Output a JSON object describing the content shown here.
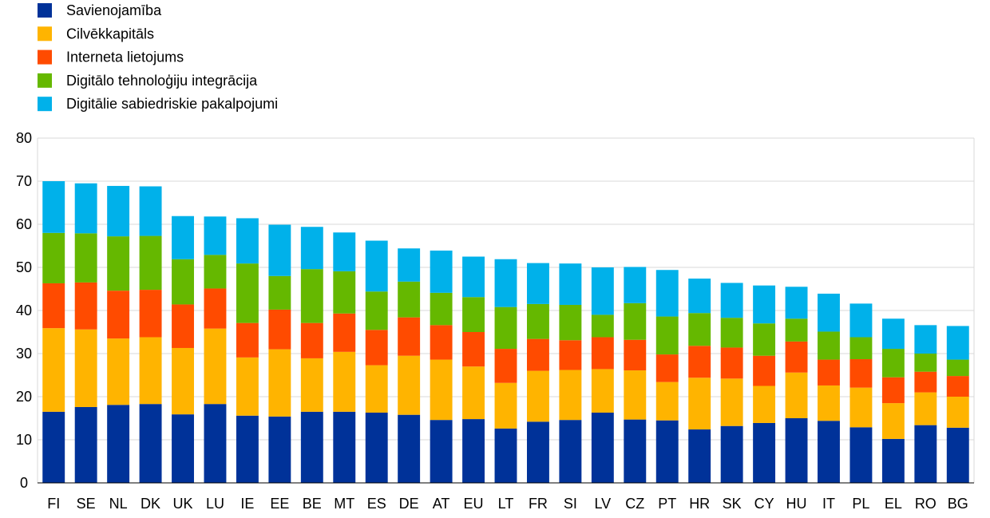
{
  "chart_data": {
    "type": "bar",
    "stacked": true,
    "categories": [
      "FI",
      "SE",
      "NL",
      "DK",
      "UK",
      "LU",
      "IE",
      "EE",
      "BE",
      "MT",
      "ES",
      "DE",
      "AT",
      "EU",
      "LT",
      "FR",
      "SI",
      "LV",
      "CZ",
      "PT",
      "HR",
      "SK",
      "CY",
      "HU",
      "IT",
      "PL",
      "EL",
      "RO",
      "BG"
    ],
    "series": [
      {
        "name": "Savienojamība",
        "color": "#003299",
        "values": [
          16.5,
          17.6,
          18.1,
          18.3,
          15.9,
          18.3,
          15.6,
          15.4,
          16.5,
          16.5,
          16.3,
          15.8,
          14.6,
          14.8,
          12.6,
          14.2,
          14.6,
          16.3,
          14.7,
          14.5,
          12.4,
          13.2,
          13.9,
          15.0,
          14.4,
          12.9,
          10.2,
          13.4,
          12.8
        ]
      },
      {
        "name": "Cilvēkkapitāls",
        "color": "#FFB400",
        "values": [
          19.4,
          18.0,
          15.4,
          15.5,
          15.4,
          17.5,
          13.5,
          15.6,
          12.4,
          13.9,
          11.0,
          13.7,
          14.0,
          12.2,
          10.6,
          11.8,
          11.6,
          10.1,
          11.4,
          8.9,
          12.0,
          11.0,
          8.6,
          10.6,
          8.2,
          9.2,
          8.3,
          7.6,
          7.2
        ]
      },
      {
        "name": "Interneta lietojums",
        "color": "#FF4B00",
        "values": [
          10.4,
          10.9,
          11.1,
          11.0,
          10.1,
          9.3,
          8.0,
          9.2,
          8.2,
          8.9,
          8.2,
          8.9,
          8.0,
          8.0,
          7.9,
          7.4,
          6.9,
          7.4,
          7.1,
          6.4,
          7.4,
          7.2,
          7.0,
          7.2,
          6.0,
          6.6,
          6.0,
          4.8,
          4.8
        ]
      },
      {
        "name": "Digitālo tehnoloģiju integrācija",
        "color": "#65B800",
        "values": [
          11.7,
          11.4,
          12.6,
          12.5,
          10.5,
          7.8,
          13.8,
          7.8,
          12.5,
          9.8,
          8.9,
          8.3,
          7.5,
          8.1,
          9.7,
          8.1,
          8.2,
          5.2,
          8.5,
          8.8,
          7.6,
          6.9,
          7.5,
          5.3,
          6.5,
          5.1,
          6.6,
          4.2,
          3.8
        ]
      },
      {
        "name": "Digitālie sabiedriskie pakalpojumi",
        "color": "#00B1EA",
        "values": [
          12.0,
          11.6,
          11.7,
          11.5,
          10.0,
          8.9,
          10.5,
          11.9,
          9.8,
          9.0,
          11.8,
          7.7,
          9.8,
          9.4,
          11.1,
          9.5,
          9.6,
          11.0,
          8.4,
          10.8,
          8.0,
          8.1,
          8.8,
          7.4,
          8.8,
          7.8,
          7.0,
          6.6,
          7.8
        ]
      }
    ],
    "ylim": [
      0,
      80
    ],
    "yticks": [
      "0",
      "10",
      "20",
      "30",
      "40",
      "50",
      "60",
      "70",
      "80"
    ],
    "grid": true,
    "legend_position": "top-left",
    "title": "",
    "xlabel": "",
    "ylabel": ""
  }
}
